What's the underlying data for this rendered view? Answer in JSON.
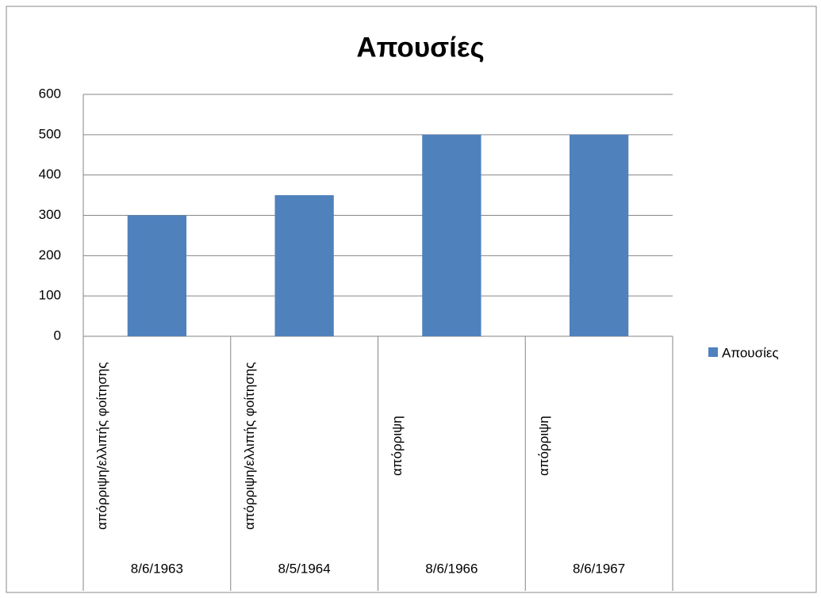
{
  "chart_data": {
    "type": "bar",
    "title": "Απουσίες",
    "categories": [
      "απόρριψη/ελλιπής φοίτησης",
      "απόρριψη/ελλιπής φοίτησης",
      "απόρριψη",
      "απόρριψη"
    ],
    "category_groups": [
      "8/6/1963",
      "8/5/1964",
      "8/6/1966",
      "8/6/1967"
    ],
    "series": [
      {
        "name": "Απουσίες",
        "color": "#4f81bd",
        "values": [
          300,
          350,
          500,
          500
        ]
      }
    ],
    "ylim": [
      0,
      600
    ],
    "yticks": [
      0,
      100,
      200,
      300,
      400,
      500,
      600
    ],
    "grid": true,
    "legend": "right"
  }
}
